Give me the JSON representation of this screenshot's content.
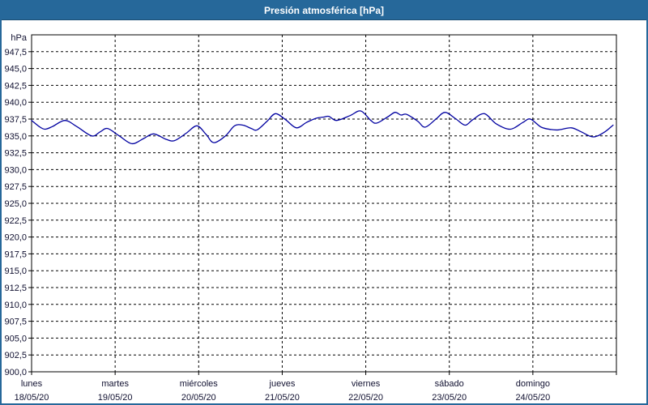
{
  "window": {
    "title": "Presión atmosférica [hPa]"
  },
  "colors": {
    "titlebar_bg": "#26689a",
    "titlebar_text": "#ffffff",
    "frame_border": "#26689a",
    "page_bg": "#ffffff",
    "plot_bg": "#ffffff",
    "plot_border": "#000000",
    "grid": "#000000",
    "tick_text": "#101030",
    "series_line": "#0000a0"
  },
  "chart_data": {
    "type": "line",
    "title": "Presión atmosférica [hPa]",
    "y_unit_label": "hPa",
    "ylim": [
      900,
      950
    ],
    "ytick_step": 2.5,
    "grid_style": "dashed",
    "legend": "none",
    "yticks": [
      {
        "v": 900.0,
        "label": "900,0"
      },
      {
        "v": 902.5,
        "label": "902,5"
      },
      {
        "v": 905.0,
        "label": "905,0"
      },
      {
        "v": 907.5,
        "label": "907,5"
      },
      {
        "v": 910.0,
        "label": "910,0"
      },
      {
        "v": 912.5,
        "label": "912,5"
      },
      {
        "v": 915.0,
        "label": "915,0"
      },
      {
        "v": 917.5,
        "label": "917,5"
      },
      {
        "v": 920.0,
        "label": "920,0"
      },
      {
        "v": 922.5,
        "label": "922,5"
      },
      {
        "v": 925.0,
        "label": "925,0"
      },
      {
        "v": 927.5,
        "label": "927,5"
      },
      {
        "v": 930.0,
        "label": "930,0"
      },
      {
        "v": 932.5,
        "label": "932,5"
      },
      {
        "v": 935.0,
        "label": "935,0"
      },
      {
        "v": 937.5,
        "label": "937,5"
      },
      {
        "v": 940.0,
        "label": "940,0"
      },
      {
        "v": 942.5,
        "label": "942,5"
      },
      {
        "v": 945.0,
        "label": "945,0"
      },
      {
        "v": 947.5,
        "label": "947,5"
      }
    ],
    "xlim_days": [
      0,
      7
    ],
    "x_days": [
      {
        "name": "lunes",
        "date": "18/05/20"
      },
      {
        "name": "martes",
        "date": "19/05/20"
      },
      {
        "name": "miércoles",
        "date": "20/05/20"
      },
      {
        "name": "jueves",
        "date": "21/05/20"
      },
      {
        "name": "viernes",
        "date": "22/05/20"
      },
      {
        "name": "sábado",
        "date": "23/05/20"
      },
      {
        "name": "domingo",
        "date": "24/05/20"
      }
    ],
    "series": [
      {
        "name": "Presión atmosférica",
        "unit": "hPa",
        "color": "#0000a0",
        "points_day_hpa": [
          [
            0.0,
            937.3
          ],
          [
            0.09,
            936.4
          ],
          [
            0.16,
            936.0
          ],
          [
            0.25,
            936.4
          ],
          [
            0.4,
            937.3
          ],
          [
            0.54,
            936.4
          ],
          [
            0.72,
            935.0
          ],
          [
            0.82,
            935.6
          ],
          [
            0.91,
            936.1
          ],
          [
            1.05,
            935.0
          ],
          [
            1.2,
            933.85
          ],
          [
            1.34,
            934.6
          ],
          [
            1.46,
            935.3
          ],
          [
            1.61,
            934.5
          ],
          [
            1.71,
            934.3
          ],
          [
            1.85,
            935.4
          ],
          [
            1.98,
            936.5
          ],
          [
            2.09,
            935.2
          ],
          [
            2.18,
            934.0
          ],
          [
            2.32,
            935.0
          ],
          [
            2.43,
            936.5
          ],
          [
            2.53,
            936.6
          ],
          [
            2.63,
            936.1
          ],
          [
            2.7,
            935.9
          ],
          [
            2.82,
            937.2
          ],
          [
            2.92,
            938.3
          ],
          [
            3.04,
            937.4
          ],
          [
            3.17,
            936.2
          ],
          [
            3.29,
            937.0
          ],
          [
            3.4,
            937.6
          ],
          [
            3.5,
            937.8
          ],
          [
            3.56,
            937.9
          ],
          [
            3.65,
            937.3
          ],
          [
            3.81,
            938.0
          ],
          [
            3.94,
            938.7
          ],
          [
            4.06,
            937.3
          ],
          [
            4.13,
            936.9
          ],
          [
            4.26,
            937.8
          ],
          [
            4.35,
            938.5
          ],
          [
            4.42,
            938.1
          ],
          [
            4.49,
            938.2
          ],
          [
            4.62,
            937.2
          ],
          [
            4.71,
            936.3
          ],
          [
            4.84,
            937.5
          ],
          [
            4.95,
            938.5
          ],
          [
            5.08,
            937.5
          ],
          [
            5.19,
            936.6
          ],
          [
            5.28,
            937.4
          ],
          [
            5.42,
            938.3
          ],
          [
            5.56,
            936.8
          ],
          [
            5.73,
            936.0
          ],
          [
            5.88,
            937.0
          ],
          [
            5.97,
            937.5
          ],
          [
            6.1,
            936.3
          ],
          [
            6.22,
            935.95
          ],
          [
            6.31,
            935.9
          ],
          [
            6.46,
            936.2
          ],
          [
            6.58,
            935.6
          ],
          [
            6.72,
            934.85
          ],
          [
            6.85,
            935.5
          ],
          [
            6.96,
            936.6
          ]
        ]
      }
    ]
  }
}
